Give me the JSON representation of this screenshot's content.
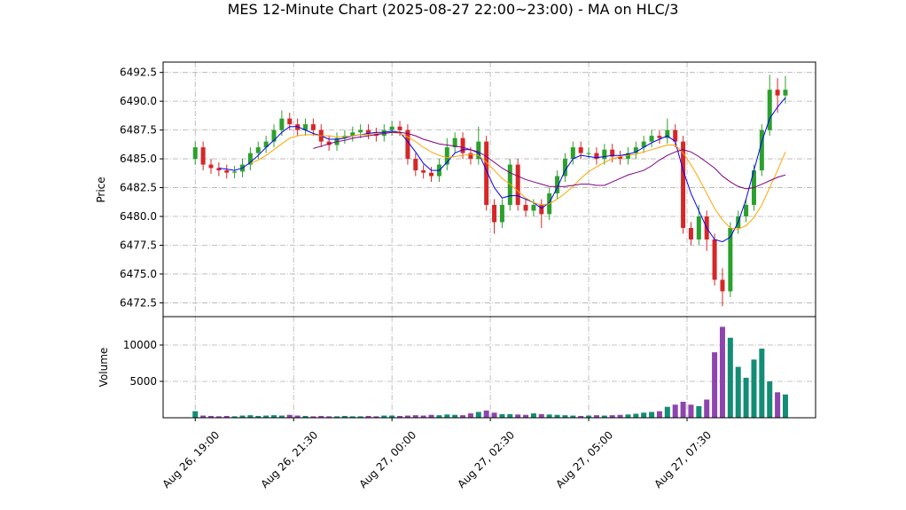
{
  "chart_data": [
    {
      "type": "candlestick",
      "title": "MES 12-Minute Chart (2025-08-27 22:00~23:00) - MA on HLC/3",
      "ylabel": "Price",
      "x": [
        "2025-08-26 19:00",
        "2025-08-26 19:12",
        "2025-08-26 19:24",
        "2025-08-26 19:36",
        "2025-08-26 19:48",
        "2025-08-26 20:00",
        "2025-08-26 20:12",
        "2025-08-26 20:24",
        "2025-08-26 20:36",
        "2025-08-26 20:48",
        "2025-08-26 21:00",
        "2025-08-26 21:12",
        "2025-08-26 21:24",
        "2025-08-26 21:36",
        "2025-08-26 21:48",
        "2025-08-26 22:00",
        "2025-08-26 22:12",
        "2025-08-26 22:24",
        "2025-08-26 22:36",
        "2025-08-26 22:48",
        "2025-08-26 23:00",
        "2025-08-26 23:12",
        "2025-08-26 23:24",
        "2025-08-26 23:36",
        "2025-08-26 23:48",
        "2025-08-27 00:00",
        "2025-08-27 00:12",
        "2025-08-27 00:24",
        "2025-08-27 00:36",
        "2025-08-27 00:48",
        "2025-08-27 01:00",
        "2025-08-27 01:12",
        "2025-08-27 01:24",
        "2025-08-27 01:36",
        "2025-08-27 01:48",
        "2025-08-27 02:00",
        "2025-08-27 02:12",
        "2025-08-27 02:24",
        "2025-08-27 02:36",
        "2025-08-27 02:48",
        "2025-08-27 03:00",
        "2025-08-27 03:12",
        "2025-08-27 03:24",
        "2025-08-27 03:36",
        "2025-08-27 03:48",
        "2025-08-27 04:00",
        "2025-08-27 04:12",
        "2025-08-27 04:24",
        "2025-08-27 04:36",
        "2025-08-27 04:48",
        "2025-08-27 05:00",
        "2025-08-27 05:12",
        "2025-08-27 05:24",
        "2025-08-27 05:36",
        "2025-08-27 05:48",
        "2025-08-27 06:00",
        "2025-08-27 06:12",
        "2025-08-27 06:24",
        "2025-08-27 06:36",
        "2025-08-27 06:48",
        "2025-08-27 07:00",
        "2025-08-27 07:12",
        "2025-08-27 07:24",
        "2025-08-27 07:36",
        "2025-08-27 07:48",
        "2025-08-27 08:00",
        "2025-08-27 08:12",
        "2025-08-27 08:24",
        "2025-08-27 08:36",
        "2025-08-27 08:48",
        "2025-08-27 09:00",
        "2025-08-27 09:12",
        "2025-08-27 09:24",
        "2025-08-27 09:36",
        "2025-08-27 09:48",
        "2025-08-27 10:00"
      ],
      "open": [
        6485.0,
        6486.0,
        6484.5,
        6484.2,
        6484.0,
        6483.8,
        6483.9,
        6484.5,
        6485.5,
        6486.0,
        6486.5,
        6487.5,
        6488.5,
        6488.0,
        6487.5,
        6488.0,
        6487.5,
        6486.5,
        6486.2,
        6486.8,
        6487.0,
        6487.3,
        6487.5,
        6487.2,
        6487.0,
        6487.5,
        6487.8,
        6487.5,
        6485.0,
        6484.0,
        6483.8,
        6483.5,
        6484.5,
        6486.0,
        6486.8,
        6485.5,
        6485.0,
        6486.5,
        6481.0,
        6479.5,
        6481.0,
        6484.5,
        6481.0,
        6480.5,
        6481.0,
        6480.2,
        6482.0,
        6483.5,
        6485.0,
        6486.0,
        6485.5,
        6485.5,
        6485.0,
        6485.8,
        6485.2,
        6485.0,
        6485.5,
        6486.0,
        6486.5,
        6487.0,
        6486.8,
        6487.5,
        6486.5,
        6479.0,
        6478.0,
        6480.0,
        6478.0,
        6474.5,
        6473.5,
        6479.0,
        6480.0,
        6481.0,
        6484.0,
        6487.5,
        6491.0,
        6490.5
      ],
      "high": [
        6486.5,
        6486.5,
        6485.0,
        6484.7,
        6484.5,
        6484.4,
        6485.0,
        6486.0,
        6486.5,
        6487.0,
        6488.0,
        6489.2,
        6489.0,
        6488.5,
        6488.5,
        6488.5,
        6488.0,
        6487.0,
        6487.3,
        6487.5,
        6487.8,
        6488.0,
        6488.0,
        6487.7,
        6488.0,
        6488.3,
        6488.3,
        6488.0,
        6485.5,
        6484.5,
        6484.3,
        6485.0,
        6486.8,
        6487.3,
        6487.3,
        6486.0,
        6487.8,
        6487.0,
        6481.5,
        6481.5,
        6485.0,
        6485.0,
        6481.5,
        6481.5,
        6481.5,
        6482.5,
        6484.0,
        6485.5,
        6486.5,
        6486.5,
        6486.0,
        6486.0,
        6486.3,
        6486.3,
        6485.7,
        6486.0,
        6486.5,
        6487.0,
        6487.5,
        6487.5,
        6488.5,
        6488.0,
        6487.0,
        6479.5,
        6481.0,
        6480.5,
        6478.5,
        6475.5,
        6479.5,
        6480.5,
        6481.5,
        6484.5,
        6488.0,
        6492.3,
        6492.0,
        6492.2
      ],
      "low": [
        6484.5,
        6484.0,
        6483.7,
        6483.5,
        6483.3,
        6483.3,
        6483.4,
        6484.0,
        6485.0,
        6485.5,
        6486.0,
        6487.0,
        6487.5,
        6487.0,
        6487.0,
        6487.0,
        6486.0,
        6485.7,
        6485.7,
        6486.3,
        6486.5,
        6486.8,
        6486.7,
        6486.5,
        6486.5,
        6487.0,
        6487.0,
        6484.5,
        6483.5,
        6483.3,
        6483.0,
        6483.0,
        6484.0,
        6485.5,
        6485.0,
        6484.5,
        6484.5,
        6480.5,
        6478.5,
        6479.0,
        6480.5,
        6480.5,
        6480.0,
        6480.0,
        6479.0,
        6479.7,
        6481.5,
        6483.0,
        6484.5,
        6485.0,
        6485.0,
        6484.5,
        6484.5,
        6484.7,
        6484.5,
        6484.5,
        6485.0,
        6485.5,
        6486.0,
        6486.3,
        6486.3,
        6486.0,
        6478.5,
        6477.5,
        6477.5,
        6477.0,
        6474.0,
        6472.2,
        6473.0,
        6478.5,
        6479.5,
        6480.5,
        6483.5,
        6487.0,
        6489.0,
        6489.8
      ],
      "close": [
        6486.0,
        6484.5,
        6484.2,
        6484.0,
        6483.8,
        6483.9,
        6484.5,
        6485.5,
        6486.0,
        6486.5,
        6487.5,
        6488.5,
        6488.0,
        6487.5,
        6488.0,
        6487.5,
        6486.5,
        6486.2,
        6486.8,
        6487.0,
        6487.3,
        6487.5,
        6487.2,
        6487.0,
        6487.5,
        6487.8,
        6487.5,
        6485.0,
        6484.0,
        6483.8,
        6483.5,
        6484.5,
        6486.0,
        6486.8,
        6485.5,
        6485.0,
        6486.5,
        6481.0,
        6479.5,
        6481.0,
        6484.5,
        6481.0,
        6480.5,
        6481.0,
        6480.2,
        6482.0,
        6483.5,
        6485.0,
        6486.0,
        6485.5,
        6485.5,
        6485.0,
        6485.8,
        6485.2,
        6485.0,
        6485.5,
        6486.0,
        6486.5,
        6487.0,
        6486.8,
        6487.5,
        6486.5,
        6479.0,
        6478.0,
        6480.0,
        6478.0,
        6474.5,
        6473.5,
        6479.0,
        6480.0,
        6481.0,
        6484.0,
        6487.5,
        6491.0,
        6490.5,
        6491.0
      ],
      "up_color": "#2ca02c",
      "down_color": "#d62728",
      "series": [
        {
          "color": "#0000ff",
          "values": [
            null,
            null,
            null,
            6484.2,
            6484.1,
            6484.0,
            6484.2,
            6484.7,
            6485.3,
            6486.0,
            6486.6,
            6487.3,
            6487.8,
            6487.8,
            6487.5,
            6487.2,
            6487.0,
            6486.7,
            6486.7,
            6486.8,
            6487.0,
            6487.1,
            6487.2,
            6487.3,
            6487.3,
            6487.4,
            6487.3,
            6486.5,
            6485.6,
            6484.6,
            6484.0,
            6484.0,
            6484.7,
            6485.5,
            6485.8,
            6485.8,
            6485.5,
            6484.0,
            6482.5,
            6481.6,
            6481.8,
            6481.8,
            6481.5,
            6481.2,
            6480.7,
            6481.2,
            6482.5,
            6484.0,
            6485.0,
            6485.3,
            6485.2,
            6485.1,
            6485.2,
            6485.3,
            6485.3,
            6485.4,
            6485.6,
            6486.0,
            6486.4,
            6486.7,
            6487.0,
            6486.5,
            6484.0,
            6482.0,
            6480.5,
            6479.0,
            6478.0,
            6477.8,
            6478.2,
            6479.5,
            6481.5,
            6484.0,
            6486.5,
            6488.5,
            6489.5,
            6490.3
          ]
        },
        {
          "color": "#ffa500",
          "values": [
            null,
            null,
            null,
            null,
            null,
            null,
            null,
            6484.6,
            6484.9,
            6485.3,
            6485.8,
            6486.3,
            6486.8,
            6487.0,
            6487.1,
            6487.1,
            6487.0,
            6487.0,
            6486.9,
            6486.9,
            6487.0,
            6487.1,
            6487.1,
            6487.2,
            6487.2,
            6487.3,
            6487.2,
            6486.9,
            6486.5,
            6486.0,
            6485.6,
            6485.3,
            6485.1,
            6485.2,
            6485.3,
            6485.4,
            6485.3,
            6484.7,
            6484.0,
            6483.3,
            6482.8,
            6482.2,
            6481.6,
            6481.2,
            6481.0,
            6481.1,
            6481.5,
            6482.0,
            6482.6,
            6483.3,
            6483.9,
            6484.3,
            6484.7,
            6485.0,
            6485.2,
            6485.3,
            6485.4,
            6485.6,
            6485.8,
            6486.0,
            6486.2,
            6486.2,
            6485.5,
            6484.5,
            6483.3,
            6482.0,
            6480.7,
            6479.7,
            6479.0,
            6478.9,
            6479.2,
            6479.9,
            6481.0,
            6482.5,
            6484.0,
            6485.6
          ]
        },
        {
          "color": "#800080",
          "values": [
            null,
            null,
            null,
            null,
            null,
            null,
            null,
            null,
            null,
            null,
            null,
            null,
            null,
            null,
            null,
            6485.9,
            6486.1,
            6486.3,
            6486.5,
            6486.6,
            6486.8,
            6486.9,
            6487.0,
            6487.1,
            6487.2,
            6487.3,
            6487.3,
            6487.2,
            6487.0,
            6486.7,
            6486.5,
            6486.3,
            6486.2,
            6486.1,
            6486.0,
            6485.8,
            6485.6,
            6485.2,
            6484.7,
            6484.2,
            6483.8,
            6483.5,
            6483.2,
            6483.0,
            6482.8,
            6482.6,
            6482.6,
            6482.6,
            6482.7,
            6482.8,
            6482.8,
            6482.7,
            6482.7,
            6483.0,
            6483.3,
            6483.6,
            6483.8,
            6484.0,
            6484.4,
            6484.9,
            6485.3,
            6485.6,
            6485.8,
            6485.6,
            6485.2,
            6484.7,
            6484.2,
            6483.5,
            6483.0,
            6482.6,
            6482.4,
            6482.5,
            6482.8,
            6483.1,
            6483.4,
            6483.6
          ]
        }
      ],
      "xlim": [
        "2025-08-26 18:11",
        "2025-08-27 10:46"
      ],
      "ylim": [
        6471.3,
        6493.4
      ],
      "yticks": [
        6472.5,
        {
          "value": 6475,
          "label": "6475.0"
        },
        6477.5,
        {
          "value": 6480,
          "label": "6480.0"
        },
        6482.5,
        {
          "value": 6485,
          "label": "6485.0"
        },
        6487.5,
        {
          "value": 6490,
          "label": "6490.0"
        },
        6492.5
      ],
      "grid": true
    },
    {
      "type": "bar",
      "ylabel": "Volume",
      "up_color": "#138d75",
      "down_color": "#8e44ad",
      "values": [
        900,
        300,
        250,
        200,
        250,
        200,
        300,
        350,
        250,
        300,
        350,
        300,
        400,
        300,
        250,
        200,
        250,
        200,
        200,
        250,
        200,
        200,
        250,
        200,
        300,
        300,
        250,
        300,
        350,
        300,
        400,
        350,
        450,
        400,
        350,
        600,
        800,
        1000,
        700,
        500,
        500,
        450,
        400,
        600,
        500,
        450,
        400,
        350,
        300,
        250,
        300,
        350,
        300,
        350,
        400,
        450,
        550,
        700,
        800,
        900,
        1500,
        1800,
        2200,
        1800,
        1600,
        2500,
        9000,
        12500,
        11000,
        7000,
        5500,
        8000,
        9500,
        5000,
        3500,
        3200
      ],
      "ylim": [
        0,
        13900
      ],
      "yticks": [
        5000,
        10000
      ],
      "xticks": [
        {
          "value": "2025-08-26 19:00",
          "label": "Aug 26, 19:00"
        },
        {
          "value": "2025-08-26 21:30",
          "label": "Aug 26, 21:30"
        },
        {
          "value": "2025-08-27 00:00",
          "label": "Aug 27, 00:00"
        },
        {
          "value": "2025-08-27 02:30",
          "label": "Aug 27, 02:30"
        },
        {
          "value": "2025-08-27 05:00",
          "label": "Aug 27, 05:00"
        },
        {
          "value": "2025-08-27 07:30",
          "label": "Aug 27, 07:30"
        }
      ],
      "grid": true
    }
  ]
}
